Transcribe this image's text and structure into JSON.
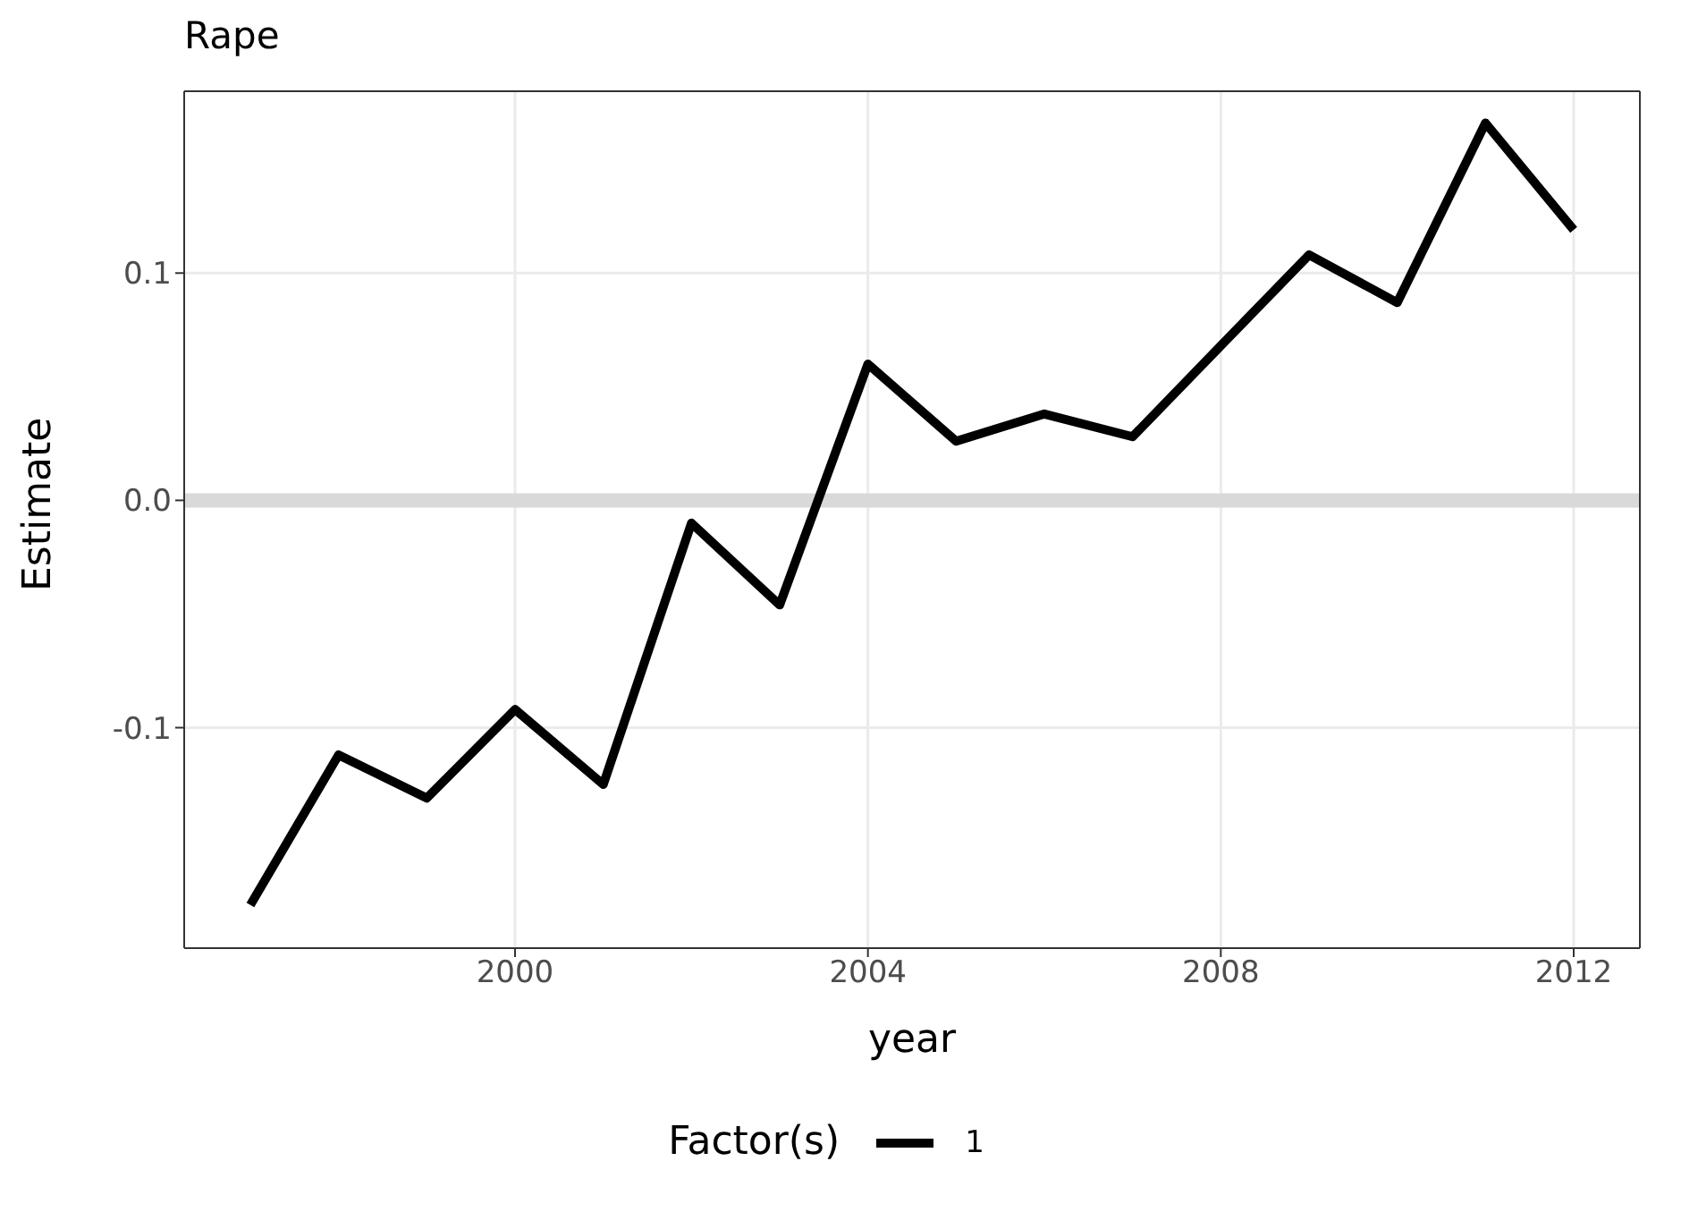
{
  "chart_data": {
    "type": "line",
    "title": "Rape",
    "xlabel": "year",
    "ylabel": "Estimate",
    "legend_title": "Factor(s)",
    "x": [
      1997,
      1998,
      1999,
      2000,
      2001,
      2002,
      2003,
      2004,
      2005,
      2006,
      2007,
      2008,
      2009,
      2010,
      2011,
      2012
    ],
    "series": [
      {
        "name": "1",
        "color": "#000000",
        "values": [
          -0.178,
          -0.112,
          -0.131,
          -0.092,
          -0.125,
          -0.01,
          -0.046,
          0.06,
          0.026,
          0.038,
          0.028,
          0.068,
          0.108,
          0.087,
          0.166,
          0.119
        ]
      }
    ],
    "xlim": [
      1996.25,
      2012.75
    ],
    "xticks": [
      2000,
      2004,
      2008,
      2012
    ],
    "ylim": [
      -0.197,
      0.18
    ],
    "yticks": [
      -0.1,
      {
        "value": 0,
        "label": "0.0"
      },
      0.1
    ],
    "ref_lines": [
      {
        "axis": "y",
        "value": 0,
        "color": "#d9d9d9"
      }
    ],
    "grid": true,
    "legend": "bottom",
    "marker": "none",
    "line_style": "solid"
  }
}
